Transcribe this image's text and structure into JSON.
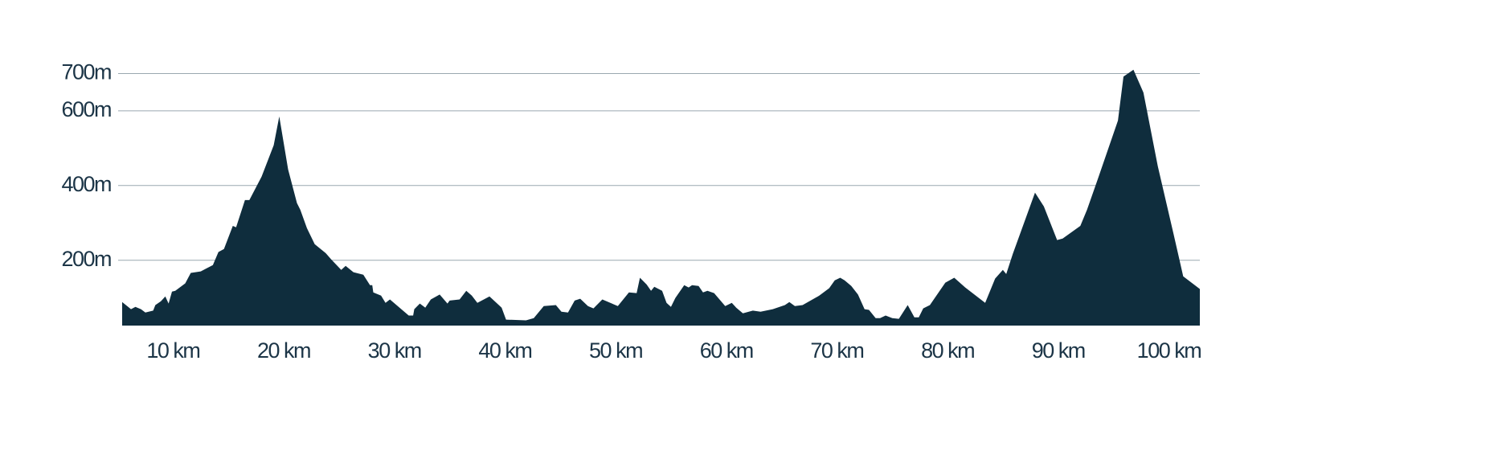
{
  "chart_data": {
    "type": "area",
    "color": "#0f2d3d",
    "grid": true,
    "xlim": [
      5.4,
      102.8
    ],
    "ylim": [
      25,
      800
    ],
    "xticks": [
      {
        "value": 10,
        "label": "10 km"
      },
      {
        "value": 20,
        "label": "20 km"
      },
      {
        "value": 30,
        "label": "30 km"
      },
      {
        "value": 40,
        "label": "40 km"
      },
      {
        "value": 50,
        "label": "50 km"
      },
      {
        "value": 60,
        "label": "60 km"
      },
      {
        "value": 70,
        "label": "70 km"
      },
      {
        "value": 80,
        "label": "80 km"
      },
      {
        "value": 90,
        "label": "90 km"
      },
      {
        "value": 100,
        "label": "100 km"
      }
    ],
    "yticks": [
      {
        "value": 200,
        "label": "200m"
      },
      {
        "value": 400,
        "label": "400m"
      },
      {
        "value": 600,
        "label": "600m"
      },
      {
        "value": 700,
        "label": "700m"
      }
    ],
    "x": [
      5.4,
      6.2,
      6.6,
      7.1,
      7.5,
      8.2,
      8.4,
      8.9,
      9.3,
      9.6,
      9.9,
      10.2,
      11.1,
      11.6,
      12.5,
      13.6,
      14.1,
      14.6,
      15.4,
      15.7,
      16.5,
      16.9,
      18.0,
      19.1,
      19.6,
      20.4,
      21.2,
      21.5,
      22.1,
      22.8,
      23.8,
      24.3,
      25.2,
      25.6,
      26.3,
      27.2,
      27.8,
      28.0,
      28.1,
      28.8,
      29.2,
      29.6,
      31.3,
      31.7,
      31.8,
      32.3,
      32.8,
      33.3,
      34.1,
      34.8,
      35.0,
      35.9,
      36.5,
      37.0,
      37.5,
      38.6,
      39.7,
      40.1,
      41.9,
      42.6,
      43.5,
      44.6,
      45.1,
      45.7,
      46.3,
      46.8,
      47.5,
      48.0,
      48.8,
      50.2,
      51.2,
      51.9,
      52.2,
      52.8,
      53.2,
      53.5,
      54.2,
      54.6,
      55.0,
      55.4,
      56.2,
      56.6,
      56.9,
      57.5,
      57.9,
      58.3,
      58.9,
      59.9,
      60.5,
      60.9,
      61.5,
      62.4,
      63.1,
      64.2,
      65.3,
      65.7,
      66.2,
      66.9,
      68.4,
      69.3,
      69.8,
      70.3,
      70.7,
      71.3,
      71.9,
      72.5,
      72.9,
      73.5,
      73.9,
      74.4,
      75.0,
      75.6,
      76.4,
      77.0,
      77.4,
      77.8,
      78.4,
      79.8,
      80.6,
      81.6,
      83.4,
      84.3,
      85.0,
      85.3,
      85.9,
      87.9,
      88.7,
      89.9,
      90.4,
      92.0,
      92.6,
      93.6,
      95.4,
      95.9,
      96.8,
      97.7,
      99.0,
      100.4,
      100.9,
      101.3,
      102.8
    ],
    "values": [
      88,
      69,
      75,
      69,
      60,
      65,
      80,
      90,
      103,
      84,
      116,
      118,
      138,
      166,
      170,
      187,
      222,
      230,
      292,
      288,
      361,
      361,
      424,
      508,
      585,
      443,
      353,
      335,
      286,
      243,
      219,
      202,
      174,
      185,
      168,
      161,
      133,
      133,
      114,
      105,
      86,
      95,
      52,
      52,
      69,
      84,
      73,
      95,
      108,
      84,
      92,
      95,
      118,
      105,
      86,
      103,
      73,
      41,
      39,
      45,
      77,
      80,
      62,
      60,
      92,
      97,
      77,
      71,
      95,
      77,
      114,
      112,
      153,
      135,
      118,
      129,
      118,
      86,
      75,
      99,
      133,
      127,
      133,
      131,
      114,
      118,
      112,
      77,
      86,
      73,
      58,
      65,
      62,
      69,
      80,
      88,
      77,
      80,
      105,
      125,
      146,
      153,
      146,
      131,
      108,
      69,
      67,
      45,
      45,
      52,
      45,
      43,
      80,
      47,
      47,
      71,
      80,
      140,
      153,
      127,
      86,
      151,
      174,
      163,
      217,
      381,
      344,
      254,
      258,
      292,
      335,
      419,
      574,
      692,
      710,
      649,
      452,
      273,
      209,
      157,
      123
    ]
  }
}
